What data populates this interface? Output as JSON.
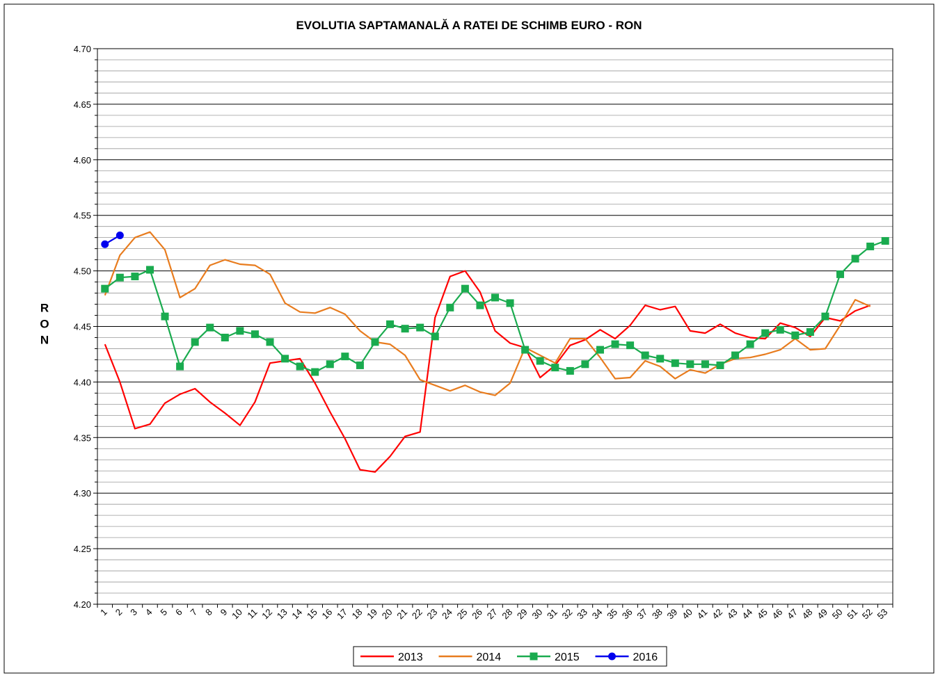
{
  "chart_data": {
    "type": "line",
    "title": "EVOLUTIA SAPTAMANALĂ A RATEI DE SCHIMB EURO - RON",
    "ylabel": "RON",
    "categories": [
      "1",
      "2",
      "3",
      "4",
      "5",
      "6",
      "7",
      "8",
      "9",
      "10",
      "11",
      "12",
      "13",
      "14",
      "15",
      "16",
      "17",
      "18",
      "19",
      "20",
      "21",
      "22",
      "23",
      "24",
      "25",
      "26",
      "27",
      "28",
      "29",
      "30",
      "31",
      "32",
      "33",
      "34",
      "35",
      "36",
      "37",
      "38",
      "39",
      "40",
      "41",
      "42",
      "43",
      "44",
      "45",
      "46",
      "47",
      "48",
      "49",
      "50",
      "51",
      "52",
      "53"
    ],
    "ylim": [
      4.2,
      4.7
    ],
    "yticks": [
      {
        "value": 4.2,
        "label": "4.20"
      },
      4.25,
      {
        "value": 4.3,
        "label": "4.30"
      },
      4.35,
      {
        "value": 4.4,
        "label": "4.40"
      },
      4.45,
      {
        "value": 4.5,
        "label": "4.50"
      },
      4.55,
      {
        "value": 4.6,
        "label": "4.60"
      },
      4.65,
      {
        "value": 4.7,
        "label": "4.70"
      }
    ],
    "minor_yticks": [
      4.21,
      4.22,
      4.23,
      4.24,
      4.26,
      4.27,
      4.28,
      4.29,
      4.31,
      4.32,
      4.33,
      4.34,
      4.36,
      4.37,
      4.38,
      4.39,
      4.41,
      4.42,
      4.43,
      4.44,
      4.46,
      4.47,
      4.48,
      4.49,
      4.51,
      4.52,
      4.53,
      4.54,
      4.56,
      4.57,
      4.58,
      4.59,
      4.61,
      4.62,
      4.63,
      4.64,
      4.66,
      4.67,
      4.68,
      4.69
    ],
    "grid": true,
    "legend": "bottom",
    "series": [
      {
        "name": "2013",
        "color": "#ff0000",
        "marker": null,
        "values": [
          4.434,
          4.4,
          4.358,
          4.362,
          4.381,
          4.389,
          4.394,
          4.382,
          4.372,
          4.361,
          4.382,
          4.417,
          4.419,
          4.421,
          4.399,
          4.373,
          4.349,
          4.321,
          4.319,
          4.333,
          4.351,
          4.355,
          4.458,
          4.495,
          4.5,
          4.481,
          4.446,
          4.435,
          4.431,
          4.404,
          4.415,
          4.433,
          4.438,
          4.447,
          4.439,
          4.451,
          4.469,
          4.465,
          4.468,
          4.446,
          4.444,
          4.452,
          4.444,
          4.44,
          4.439,
          4.453,
          4.449,
          4.441,
          4.458,
          4.455,
          4.464,
          4.469,
          null
        ]
      },
      {
        "name": "2014",
        "color": "#e87c1e",
        "marker": null,
        "values": [
          4.478,
          4.514,
          4.53,
          4.535,
          4.519,
          4.476,
          4.484,
          4.505,
          4.51,
          4.506,
          4.505,
          4.497,
          4.471,
          4.463,
          4.462,
          4.467,
          4.461,
          4.446,
          4.436,
          4.434,
          4.424,
          4.402,
          4.397,
          4.392,
          4.397,
          4.391,
          4.388,
          4.399,
          4.431,
          4.424,
          4.417,
          4.439,
          4.439,
          4.422,
          4.403,
          4.404,
          4.419,
          4.414,
          4.403,
          4.411,
          4.408,
          4.416,
          4.421,
          4.422,
          4.425,
          4.429,
          4.439,
          4.429,
          4.43,
          4.451,
          4.474,
          4.468,
          null
        ]
      },
      {
        "name": "2015",
        "color": "#1aab4f",
        "marker": "square",
        "values": [
          4.484,
          4.494,
          4.495,
          4.501,
          4.459,
          4.414,
          4.436,
          4.449,
          4.44,
          4.446,
          4.443,
          4.436,
          4.421,
          4.414,
          4.409,
          4.416,
          4.423,
          4.415,
          4.436,
          4.452,
          4.448,
          4.449,
          4.441,
          4.467,
          4.484,
          4.469,
          4.476,
          4.471,
          4.429,
          4.419,
          4.413,
          4.41,
          4.416,
          4.429,
          4.434,
          4.433,
          4.424,
          4.421,
          4.417,
          4.416,
          4.416,
          4.415,
          4.424,
          4.434,
          4.444,
          4.447,
          4.442,
          4.445,
          4.459,
          4.497,
          4.511,
          4.522,
          4.527
        ]
      },
      {
        "name": "2016",
        "color": "#0000ee",
        "marker": "circle",
        "values": [
          4.524,
          4.532,
          null,
          null,
          null,
          null,
          null,
          null,
          null,
          null,
          null,
          null,
          null,
          null,
          null,
          null,
          null,
          null,
          null,
          null,
          null,
          null,
          null,
          null,
          null,
          null,
          null,
          null,
          null,
          null,
          null,
          null,
          null,
          null,
          null,
          null,
          null,
          null,
          null,
          null,
          null,
          null,
          null,
          null,
          null,
          null,
          null,
          null,
          null,
          null,
          null,
          null,
          null
        ]
      }
    ]
  }
}
